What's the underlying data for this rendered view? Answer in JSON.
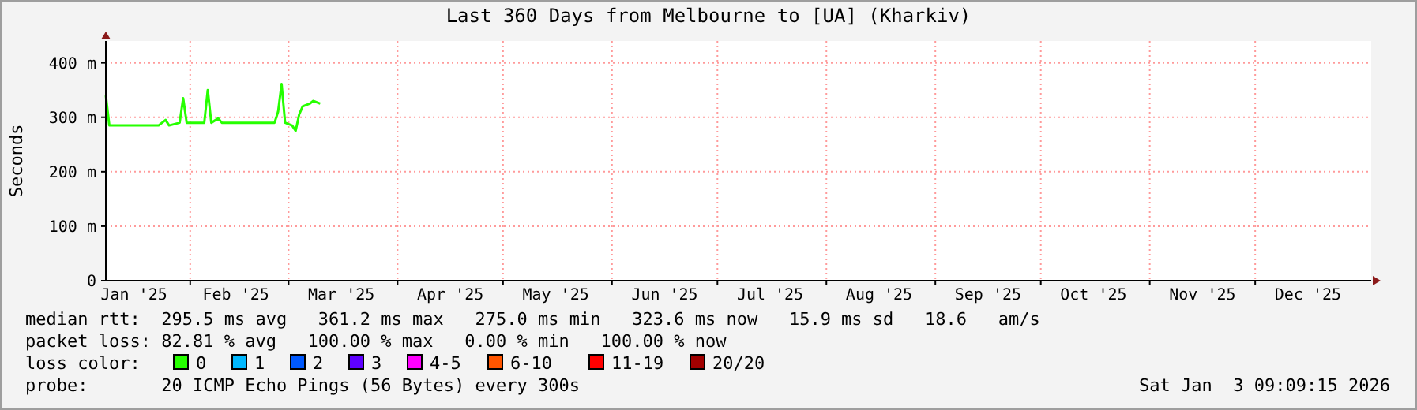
{
  "chart_data": {
    "type": "line",
    "title": "Last 360 Days from Melbourne to [UA] (Kharkiv)",
    "ylabel": "Seconds",
    "x": [
      "2025-01-08",
      "2025-01-09",
      "2025-01-23",
      "2025-01-25",
      "2025-01-26",
      "2025-01-29",
      "2025-01-30",
      "2025-01-31",
      "2025-02-05",
      "2025-02-06",
      "2025-02-07",
      "2025-02-09",
      "2025-02-10",
      "2025-02-25",
      "2025-02-26",
      "2025-02-27",
      "2025-02-28",
      "2025-03-02",
      "2025-03-03",
      "2025-03-04",
      "2025-03-05",
      "2025-03-07",
      "2025-03-08",
      "2025-03-10"
    ],
    "series": [
      {
        "color": "#26ff00",
        "values": [
          340,
          285,
          285,
          295,
          285,
          290,
          335,
          290,
          290,
          350,
          290,
          298,
          290,
          290,
          310,
          361,
          290,
          285,
          275,
          305,
          320,
          325,
          330,
          325
        ]
      }
    ],
    "xlim": [
      "2025-01-08",
      "2026-01-03"
    ],
    "xticks": [
      {
        "value": "2025-01-16",
        "label": "Jan '25"
      },
      {
        "value": "2025-02-01",
        "label": null
      },
      {
        "value": "2025-02-14",
        "label": "Feb '25"
      },
      {
        "value": "2025-03-01",
        "label": null
      },
      {
        "value": "2025-03-16",
        "label": "Mar '25"
      },
      {
        "value": "2025-04-01",
        "label": null
      },
      {
        "value": "2025-04-16",
        "label": "Apr '25"
      },
      {
        "value": "2025-05-01",
        "label": null
      },
      {
        "value": "2025-05-16",
        "label": "May '25"
      },
      {
        "value": "2025-06-01",
        "label": null
      },
      {
        "value": "2025-06-16",
        "label": "Jun '25"
      },
      {
        "value": "2025-07-01",
        "label": null
      },
      {
        "value": "2025-07-16",
        "label": "Jul '25"
      },
      {
        "value": "2025-08-01",
        "label": null
      },
      {
        "value": "2025-08-16",
        "label": "Aug '25"
      },
      {
        "value": "2025-09-01",
        "label": null
      },
      {
        "value": "2025-09-16",
        "label": "Sep '25"
      },
      {
        "value": "2025-10-01",
        "label": null
      },
      {
        "value": "2025-10-16",
        "label": "Oct '25"
      },
      {
        "value": "2025-11-01",
        "label": null
      },
      {
        "value": "2025-11-16",
        "label": "Nov '25"
      },
      {
        "value": "2025-12-01",
        "label": null
      },
      {
        "value": "2025-12-16",
        "label": "Dec '25"
      }
    ],
    "ylim": [
      0,
      440
    ],
    "yticks": [
      {
        "value": 0,
        "label": "0"
      },
      {
        "value": 100,
        "label": "100 m"
      },
      {
        "value": 200,
        "label": "200 m"
      },
      {
        "value": 300,
        "label": "300 m"
      },
      {
        "value": 400,
        "label": "400 m"
      }
    ],
    "grid": true,
    "marker": "none",
    "line_style": "solid",
    "annotations": [
      "median rtt:  295.5 ms avg   361.2 ms max   275.0 ms min   323.6 ms now   15.9 ms sd   18.6   am/s",
      "packet loss: 82.81 % avg   100.00 % max   0.00 % min   100.00 % now",
      "loss color:",
      "0",
      "1",
      "2",
      "3",
      "4-5",
      "6-10",
      "11-19",
      "20/20",
      "probe:       20 ICMP Echo Pings (56 Bytes) every 300s",
      "Sat Jan  3 09:09:15 2026"
    ]
  }
}
